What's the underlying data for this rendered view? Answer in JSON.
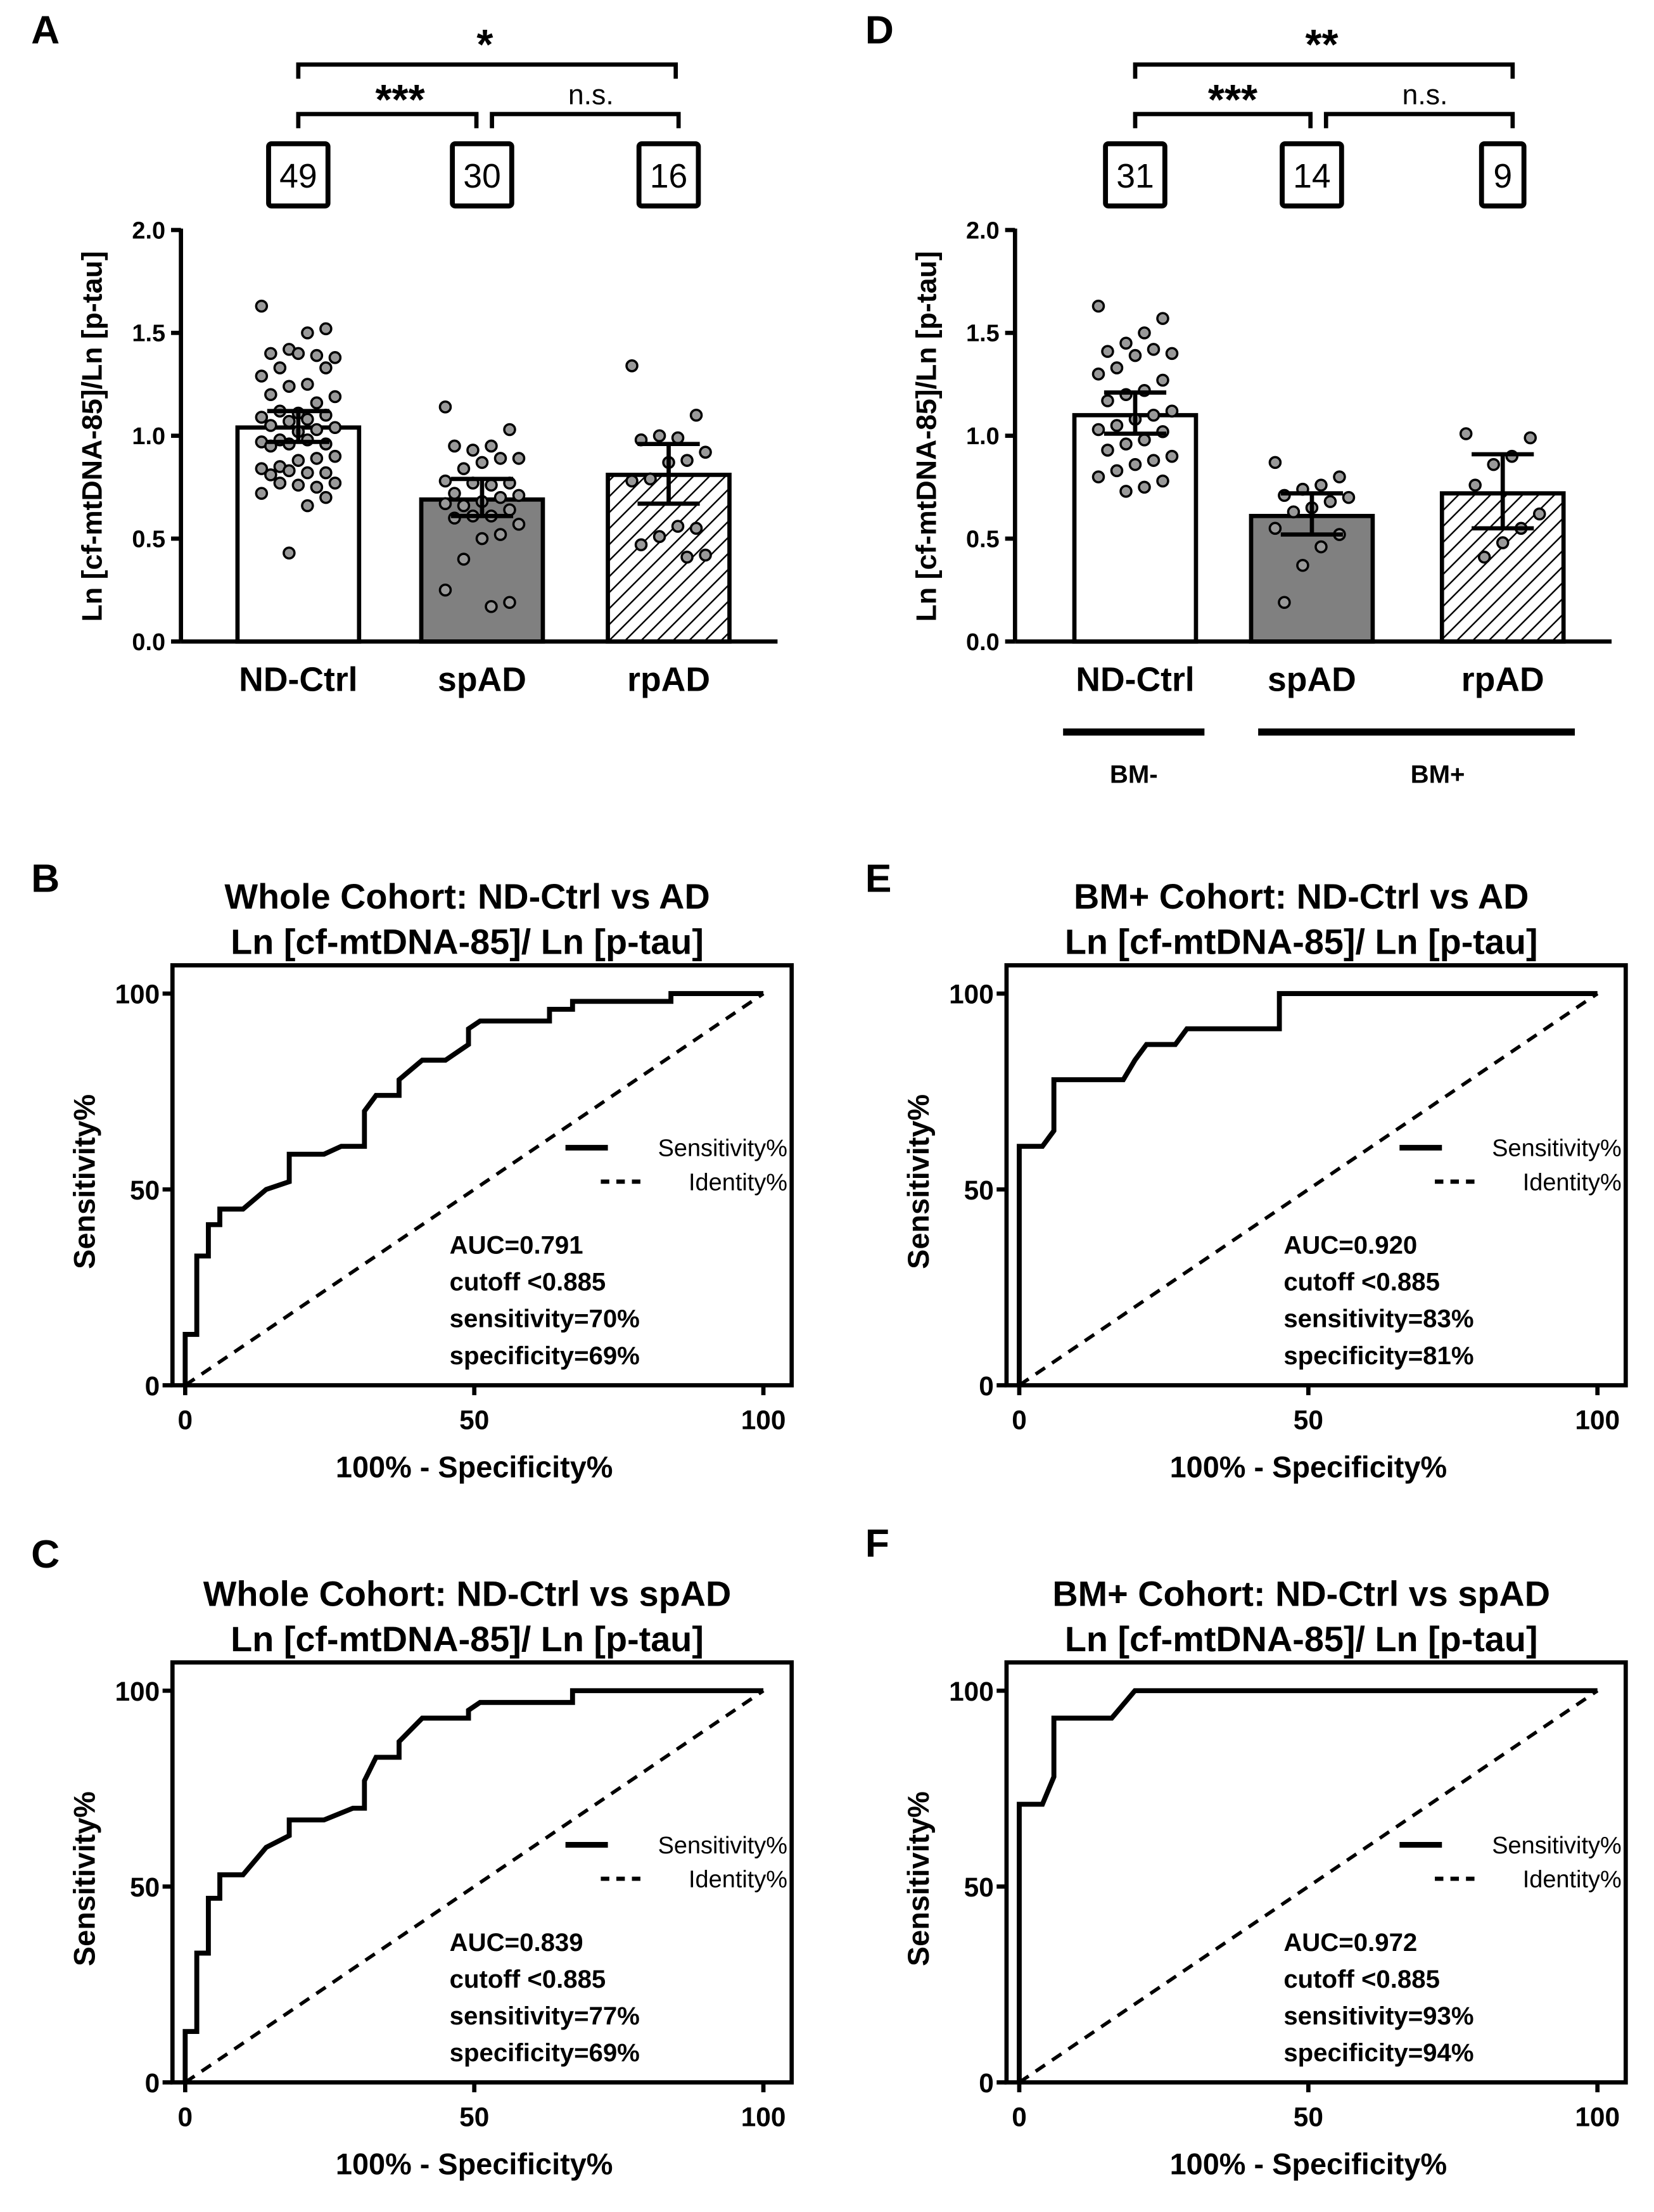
{
  "colors": {
    "ink": "#000000",
    "bar_white": "#ffffff",
    "bar_gray": "#808080",
    "dot_fill": "#999999"
  },
  "chart_data": [
    {
      "panel": "A",
      "type": "bar",
      "ylabel": "Ln [cf-mtDNA-85]/Ln [p-tau]",
      "ylim": [
        0,
        2.0
      ],
      "yticks": [
        "0.0",
        "0.5",
        "1.0",
        "1.5",
        "2.0"
      ],
      "categories": [
        "ND-Ctrl",
        "spAD",
        "rpAD"
      ],
      "n": [
        "49",
        "30",
        "16"
      ],
      "values": [
        1.04,
        0.69,
        0.81
      ],
      "error_low": [
        0.97,
        0.61,
        0.67
      ],
      "error_high": [
        1.12,
        0.79,
        0.96
      ],
      "fills": [
        "white",
        "gray",
        "hatched"
      ],
      "points": [
        [
          1.63,
          1.52,
          1.5,
          1.42,
          1.4,
          1.38,
          1.39,
          1.4,
          1.33,
          1.29,
          1.33,
          1.25,
          1.24,
          1.2,
          1.19,
          1.16,
          1.11,
          1.12,
          1.09,
          1.1,
          1.08,
          1.07,
          1.05,
          1.04,
          1.03,
          1.02,
          0.98,
          0.97,
          0.96,
          0.98,
          0.96,
          0.95,
          0.9,
          0.89,
          0.88,
          0.85,
          0.84,
          0.82,
          0.82,
          0.83,
          0.81,
          0.77,
          0.75,
          0.76,
          0.77,
          0.72,
          0.7,
          0.66,
          0.43
        ],
        [
          1.14,
          1.03,
          0.95,
          0.93,
          0.95,
          0.89,
          0.89,
          0.87,
          0.84,
          0.78,
          0.77,
          0.76,
          0.77,
          0.72,
          0.71,
          0.7,
          0.68,
          0.66,
          0.67,
          0.64,
          0.61,
          0.61,
          0.6,
          0.57,
          0.52,
          0.5,
          0.4,
          0.25,
          0.19,
          0.17
        ],
        [
          1.34,
          1.1,
          0.99,
          1.0,
          0.98,
          0.92,
          0.88,
          0.87,
          0.79,
          0.78,
          0.55,
          0.56,
          0.51,
          0.47,
          0.42,
          0.41
        ]
      ],
      "significance": [
        {
          "from": 0,
          "to": 2,
          "label": "*"
        },
        {
          "from": 0,
          "to": 1,
          "label": "***"
        },
        {
          "from": 1,
          "to": 2,
          "label": "n.s."
        }
      ]
    },
    {
      "panel": "D",
      "type": "bar",
      "ylabel": "Ln [cf-mtDNA-85]/Ln [p-tau]",
      "ylim": [
        0,
        2.0
      ],
      "yticks": [
        "0.0",
        "0.5",
        "1.0",
        "1.5",
        "2.0"
      ],
      "categories": [
        "ND-Ctrl",
        "spAD",
        "rpAD"
      ],
      "n": [
        "31",
        "14",
        "9"
      ],
      "values": [
        1.1,
        0.61,
        0.72
      ],
      "error_low": [
        1.01,
        0.52,
        0.55
      ],
      "error_high": [
        1.21,
        0.72,
        0.91
      ],
      "fills": [
        "white",
        "gray",
        "hatched"
      ],
      "points": [
        [
          1.63,
          1.57,
          1.5,
          1.45,
          1.41,
          1.4,
          1.42,
          1.39,
          1.33,
          1.3,
          1.27,
          1.22,
          1.2,
          1.17,
          1.12,
          1.1,
          1.08,
          1.05,
          1.03,
          1.02,
          0.98,
          0.96,
          0.93,
          0.9,
          0.88,
          0.86,
          0.83,
          0.8,
          0.78,
          0.75,
          0.73
        ],
        [
          0.87,
          0.8,
          0.76,
          0.74,
          0.71,
          0.7,
          0.68,
          0.65,
          0.63,
          0.55,
          0.52,
          0.46,
          0.37,
          0.19
        ],
        [
          1.01,
          0.99,
          0.9,
          0.86,
          0.76,
          0.62,
          0.55,
          0.48,
          0.41
        ]
      ],
      "significance": [
        {
          "from": 0,
          "to": 2,
          "label": "**"
        },
        {
          "from": 0,
          "to": 1,
          "label": "***"
        },
        {
          "from": 1,
          "to": 2,
          "label": "n.s."
        }
      ],
      "groups": [
        {
          "label": "BM-",
          "from": 0,
          "to": 0
        },
        {
          "label": "BM+",
          "from": 1,
          "to": 2
        }
      ]
    },
    {
      "panel": "B",
      "type": "line",
      "title": [
        "Whole Cohort: ND-Ctrl vs AD",
        "Ln [cf-mtDNA-85]/ Ln [p-tau]"
      ],
      "xlabel": "100% - Specificity%",
      "ylabel": "Sensitivity%",
      "xlim": [
        0,
        100
      ],
      "ylim": [
        0,
        100
      ],
      "xticks": [
        "0",
        "50",
        "100"
      ],
      "yticks": [
        "0",
        "50",
        "100"
      ],
      "legend": [
        "Sensitivity%",
        "Identity%"
      ],
      "legend_position": "right",
      "series": [
        {
          "name": "Sensitivity%",
          "style": "solid",
          "x": [
            0,
            0,
            2,
            2,
            4,
            4,
            6,
            6,
            10,
            14,
            18,
            18,
            24,
            27,
            31,
            31,
            33,
            37,
            37,
            41,
            45,
            49,
            49,
            51,
            63,
            63,
            67,
            67,
            84,
            84,
            100
          ],
          "y": [
            0,
            13,
            13,
            33,
            33,
            41,
            41,
            45,
            45,
            50,
            52,
            59,
            59,
            61,
            61,
            70,
            74,
            74,
            78,
            83,
            83,
            87,
            91,
            93,
            93,
            96,
            96,
            98,
            98,
            100,
            100
          ]
        },
        {
          "name": "Identity%",
          "style": "dashed",
          "x": [
            0,
            100
          ],
          "y": [
            0,
            100
          ]
        }
      ],
      "annotations": [
        "AUC=0.791",
        "cutoff <0.885",
        "sensitivity=70%",
        "specificity=69%"
      ]
    },
    {
      "panel": "C",
      "type": "line",
      "title": [
        "Whole Cohort: ND-Ctrl vs spAD",
        "Ln [cf-mtDNA-85]/ Ln [p-tau]"
      ],
      "xlabel": "100% - Specificity%",
      "ylabel": "Sensitivity%",
      "xlim": [
        0,
        100
      ],
      "ylim": [
        0,
        100
      ],
      "xticks": [
        "0",
        "50",
        "100"
      ],
      "yticks": [
        "0",
        "50",
        "100"
      ],
      "legend": [
        "Sensitivity%",
        "Identity%"
      ],
      "legend_position": "right",
      "series": [
        {
          "name": "Sensitivity%",
          "style": "solid",
          "x": [
            0,
            0,
            2,
            2,
            4,
            4,
            6,
            6,
            10,
            14,
            18,
            18,
            24,
            29,
            31,
            31,
            33,
            37,
            37,
            41,
            49,
            49,
            51,
            67,
            67,
            100
          ],
          "y": [
            0,
            13,
            13,
            33,
            33,
            47,
            47,
            53,
            53,
            60,
            63,
            67,
            67,
            70,
            70,
            77,
            83,
            83,
            87,
            93,
            93,
            95,
            97,
            97,
            100,
            100
          ]
        },
        {
          "name": "Identity%",
          "style": "dashed",
          "x": [
            0,
            100
          ],
          "y": [
            0,
            100
          ]
        }
      ],
      "annotations": [
        "AUC=0.839",
        "cutoff <0.885",
        "sensitivity=77%",
        "specificity=69%"
      ]
    },
    {
      "panel": "E",
      "type": "line",
      "title": [
        "BM+ Cohort: ND-Ctrl vs AD",
        "Ln [cf-mtDNA-85]/ Ln [p-tau]"
      ],
      "xlabel": "100% - Specificity%",
      "ylabel": "Sensitivity%",
      "xlim": [
        0,
        100
      ],
      "ylim": [
        0,
        100
      ],
      "xticks": [
        "0",
        "50",
        "100"
      ],
      "yticks": [
        "0",
        "50",
        "100"
      ],
      "legend": [
        "Sensitivity%",
        "Identity%"
      ],
      "legend_position": "right",
      "series": [
        {
          "name": "Sensitivity%",
          "style": "solid",
          "x": [
            0,
            0,
            4,
            6,
            6,
            18,
            20,
            22,
            27,
            29,
            45,
            45,
            100
          ],
          "y": [
            0,
            61,
            61,
            65,
            78,
            78,
            83,
            87,
            87,
            91,
            91,
            100,
            100
          ]
        },
        {
          "name": "Identity%",
          "style": "dashed",
          "x": [
            0,
            100
          ],
          "y": [
            0,
            100
          ]
        }
      ],
      "annotations": [
        "AUC=0.920",
        "cutoff <0.885",
        "sensitivity=83%",
        "specificity=81%"
      ]
    },
    {
      "panel": "F",
      "type": "line",
      "title": [
        "BM+ Cohort: ND-Ctrl vs spAD",
        "Ln [cf-mtDNA-85]/ Ln [p-tau]"
      ],
      "xlabel": "100% - Specificity%",
      "ylabel": "Sensitivity%",
      "xlim": [
        0,
        100
      ],
      "ylim": [
        0,
        100
      ],
      "xticks": [
        "0",
        "50",
        "100"
      ],
      "yticks": [
        "0",
        "50",
        "100"
      ],
      "legend": [
        "Sensitivity%",
        "Identity%"
      ],
      "legend_position": "right",
      "series": [
        {
          "name": "Sensitivity%",
          "style": "solid",
          "x": [
            0,
            0,
            4,
            6,
            6,
            16,
            20,
            100
          ],
          "y": [
            0,
            71,
            71,
            78,
            93,
            93,
            100,
            100
          ]
        },
        {
          "name": "Identity%",
          "style": "dashed",
          "x": [
            0,
            100
          ],
          "y": [
            0,
            100
          ]
        }
      ],
      "annotations": [
        "AUC=0.972",
        "cutoff <0.885",
        "sensitivity=93%",
        "specificity=94%"
      ]
    }
  ]
}
